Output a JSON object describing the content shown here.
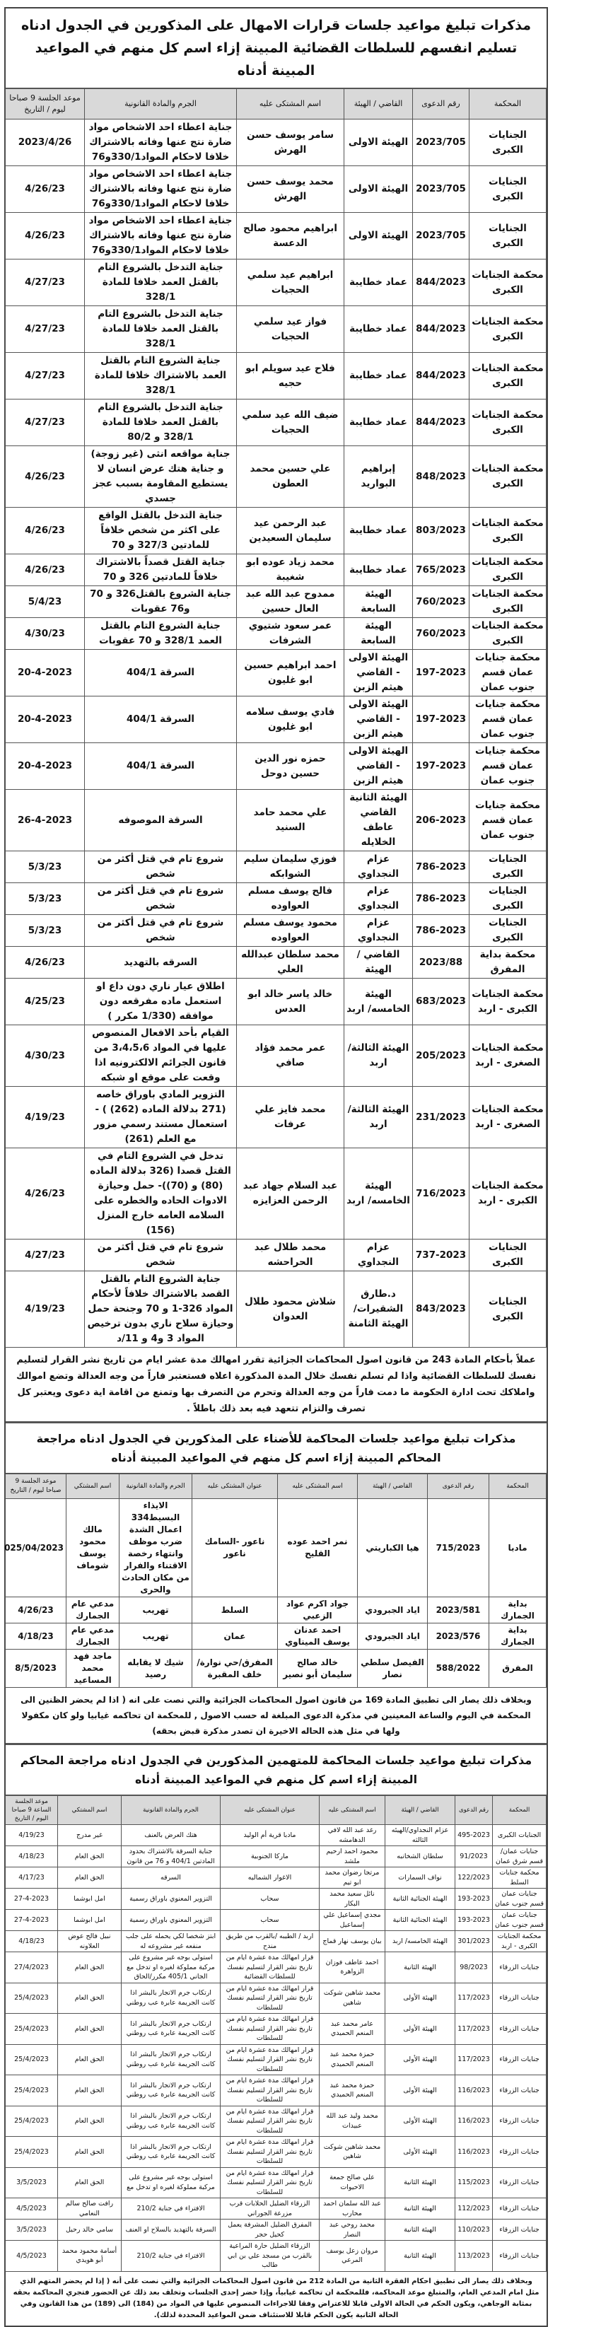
{
  "section1": {
    "title": "مذكرات تبليغ مواعيد جلسات قرارات الامهال على المذكورين في الجدول ادناه تسليم انفسهم للسلطات القضائية المبينة إزاء اسم كل منهم في المواعيد المبينة أدناه",
    "headers": [
      "المحكمة",
      "رقم الدعوى",
      "القاضي / الهيئة",
      "اسم المشتكى عليه",
      "الجرم والمادة القانونية",
      "موعد الجلسة 9 صباحا ليوم / التاريخ"
    ],
    "rows": [
      [
        "الجنايات الكبرى",
        "2023/705",
        "الهيئة الاولى",
        "سامر يوسف حسن الهرش",
        "جناية اعطاء احد الاشخاص مواد ضارة نتج عنها وفاته بالاشتراك خلافا لاحكام المواد330/1و76",
        "2023/4/26"
      ],
      [
        "الجنايات الكبرى",
        "2023/705",
        "الهيئة الاولى",
        "محمد يوسف حسن الهرش",
        "جناية اعطاء احد الاشخاص مواد ضارة نتج عنها وفاته بالاشتراك خلافا لاحكام المواد330/1و76",
        "4/26/23"
      ],
      [
        "الجنايات الكبرى",
        "2023/705",
        "الهيئة الاولى",
        "ابراهيم محمود صالح الدعسة",
        "جناية اعطاء احد الاشخاص مواد ضارة نتج عنها وفاته بالاشتراك خلافا لاحكام المواد330/1و76",
        "4/26/23"
      ],
      [
        "محكمة الجنايات الكبرى",
        "844/2023",
        "عماد خطايبة",
        "ابراهيم عيد سلمي الحجيات",
        "جناية التدخل بالشروع التام بالقتل العمد خلافا للمادة 328/1",
        "4/27/23"
      ],
      [
        "محكمة الجنايات الكبرى",
        "844/2023",
        "عماد خطايبة",
        "فواز عيد سلمي الحجيات",
        "جناية التدخل بالشروع التام بالقتل العمد خلافا للمادة 328/1",
        "4/27/23"
      ],
      [
        "محكمة الجنايات الكبرى",
        "844/2023",
        "عماد خطايبة",
        "فلاح عيد سويلم ابو حجيه",
        "جناية الشروع التام بالقتل العمد بالاشتراك خلافا للمادة 328/1",
        "4/27/23"
      ],
      [
        "محكمة الجنايات الكبرى",
        "844/2023",
        "عماد خطايبة",
        "ضيف الله عيد سلمي الحجيات",
        "جناية التدخل بالشروع التام بالقتل العمد خلافا للمادة 328/1 و 80/2",
        "4/27/23"
      ],
      [
        "محكمة الجنايات الكبرى",
        "848/2023",
        "إبراهيم البواريد",
        "علي حسين محمد العطون",
        "جناية مواقعه انثى (غير زوجة) و جناية هتك عرض انسان لا يستطيع المقاومة بسبب عجز جسدي",
        "4/26/23"
      ],
      [
        "محكمة الجنايات الكبرى",
        "803/2023",
        "عماد خطايبة",
        "عبد الرحمن عيد سليمان السعيدين",
        "جناية التدخل بالقتل الواقع على اكثر من شخص خلافاً للمادتين 327/3 و 70",
        "4/26/23"
      ],
      [
        "محكمة الجنايات الكبرى",
        "765/2023",
        "عماد خطايبة",
        "محمد زياد عوده ابو شغيبة",
        "جناية القتل قصداً بالاشتراك خلافاً للمادتين 326 و 70",
        "4/26/23"
      ],
      [
        "محكمة الجنايات الكبرى",
        "760/2023",
        "الهيئة السابعة",
        "ممدوح عبد الله عبد العال حسين",
        "جناية الشروع بالقتل326 و 70 و76 عقوبات",
        "5/4/23"
      ],
      [
        "محكمة الجنايات الكبرى",
        "760/2023",
        "الهيئة السابعة",
        "عمر سعود شتيوي الشرفات",
        "جناية الشروع التام بالقتل العمد 328/1 و 70 عقوبات",
        "4/30/23"
      ],
      [
        "محكمة جنايات عمان قسم جنوب عمان",
        "197-2023",
        "الهيئة الاولى - القاضي هيثم الزبن",
        "احمد ابراهيم حسين ابو غليون",
        "السرقة 404/1",
        "20-4-2023"
      ],
      [
        "محكمة جنايات عمان قسم جنوب عمان",
        "197-2023",
        "الهيئة الاولى - القاضي هيثم الزبن",
        "فادي يوسف سلامه ابو غليون",
        "السرقة 404/1",
        "20-4-2023"
      ],
      [
        "محكمة جنايات عمان قسم جنوب عمان",
        "197-2023",
        "الهيئة الاولى - القاضي هيثم الزبن",
        "حمزه نور الدين حسين دوحل",
        "السرقة 404/1",
        "20-4-2023"
      ],
      [
        "محكمة جنايات عمان قسم جنوب عمان",
        "206-2023",
        "الهيئة الثانية القاضي عاطف الخلايله",
        "علي محمد حامد السنيد",
        "السرقة الموصوفه",
        "26-4-2023"
      ],
      [
        "الجنايات الكبرى",
        "786-2023",
        "عزام النجداوي",
        "فوزي سليمان سليم الشوابكه",
        "شروع تام في قتل أكثر من شخص",
        "5/3/23"
      ],
      [
        "الجنايات الكبرى",
        "786-2023",
        "عزام النجداوي",
        "فالح يوسف مسلم العواوده",
        "شروع تام في قتل أكثر من شخص",
        "5/3/23"
      ],
      [
        "الجنايات الكبرى",
        "786-2023",
        "عزام النجداوي",
        "محمود يوسف مسلم العواوده",
        "شروع تام في قتل أكثر من شخص",
        "5/3/23"
      ],
      [
        "محكمة بداية المفرق",
        "2023/88",
        "القاضي / الهيئة",
        "محمد سلطان عبدالله العلي",
        "السرقه بالتهديد",
        "4/26/23"
      ],
      [
        "محكمة الجنايات الكبرى - اربد",
        "683/2023",
        "الهيئة الخامسه/ اربد",
        "خالد ياسر خالد ابو العدس",
        "اطلاق عيار ناري دون داع او استعمل ماده مفرقعه دون موافقه (1/330 مكرر )",
        "4/25/23"
      ],
      [
        "محكمة الجنايات الصغرى - اربد",
        "205/2023",
        "الهيئة الثالثة/ اربد",
        "عمر محمد فؤاد صافي",
        "القيام بأحد الافعال المنصوص عليها في المواد 3،4،5،6 من قانون الجرائم الالكترونيه اذا وقعت على موقع او شبكه",
        "4/30/23"
      ],
      [
        "محكمة الجنايات الصغرى - اربد",
        "231/2023",
        "الهيئة الثالثة/ اربد",
        "محمد فايز علي عرفات",
        "التزوير المادي باوراق خاصه (271 بدلالة الماده (262) ) - استعمال مستند رسمي مزور مع العلم (261)",
        "4/19/23"
      ],
      [
        "محكمة الجنايات الكبرى - اربد",
        "716/2023",
        "الهيئة الخامسه/ اربد",
        "عبد السلام جهاد عبد الرحمن العزايزه",
        "تدخل في الشروع التام في القتل قصدا (326 بدلالة الماده (80) و (70))- حمل وحيازة الادوات الحاده والخطره على السلامه العامه خارج المنزل (156)",
        "4/26/23"
      ],
      [
        "الجنايات الكبرى",
        "737-2023",
        "عزام النجداوي",
        "محمد طلال عبد الحراحشه",
        "شروع تام في قتل أكثر من شخص",
        "4/27/23"
      ],
      [
        "الجنايات الكبرى",
        "843/2023",
        "د.طارق الشقيرات/الهيئة الثامنة",
        "شلاش محمود طلال العدوان",
        "جناية الشروع التام بالقتل القصد بالاشتراك خلافاً لأحكام المواد 326-1 و 70 وجنحة حمل وحيازة سلاح ناري بدون ترخيص المواد 3 و4 و 11/د",
        "4/19/23"
      ]
    ],
    "note": "عملاً بأحكام المادة 243 من قانون اصول المحاكمات الجزائية تقرر امهالك مدة عشر ايام من تاريخ نشر القرار لتسليم نفسك للسلطات القضائية واذا لم تسلم نفسك خلال المدة المذكورة اعلاه فستعتبر فاراً من وجه العدالة وتضع اموالك واملاكك تحت ادارة الحكومة ما دمت فاراً من وجه العدالة وتحرم من التصرف بها وتمنع من اقامة اية دعوى ويعتبر كل تصرف والتزام تتعهد فيه بعد ذلك باطلاً ."
  },
  "section2": {
    "title": "مذكرات تبليغ مواعيد جلسات المحاكمة للأضناء على المذكورين في الجدول ادناه مراجعة المحاكم المبينة إزاء اسم كل منهم في المواعيد المبينة أدناه",
    "headers": [
      "المحكمة",
      "رقم الدعوى",
      "القاضي / الهيئة",
      "اسم المشتكى عليه",
      "عنوان المشتكى عليه",
      "الجرم والمادة القانونية",
      "اسم المشتكي",
      "موعد الجلسة 9 صباحا ليوم / التاريخ"
    ],
    "rows": [
      [
        "مادبا",
        "715/2023",
        "هيا الكباريتي",
        "نمر احمد عوده القليح",
        "ناعور -السامك ناعور",
        "الايذاء البسيط334 اعمال الشدة ضرب موظف وانتهاء رخصة الاقتناء والفرار من مكان الحادث والحرى",
        "مالك محمود يوسف شوماف",
        "025/04/2023"
      ],
      [
        "بداية الجمارك",
        "2023/581",
        "اياد الجبرودي",
        "جواد اكرم عواد الزعبي",
        "السلط",
        "تهريب",
        "مدعي عام الجمارك",
        "4/26/23"
      ],
      [
        "بداية الجمارك",
        "2023/576",
        "اياد الجبرودي",
        "احمد عدنان يوسف الميناوي",
        "عمان",
        "تهريب",
        "مدعي عام الجمارك",
        "4/18/23"
      ],
      [
        "المفرق",
        "588/2022",
        "الفيصل سلطي نصار",
        "خالد صالح سليمان أبو نصير",
        "المفرق/حي نوارة/خلف المقبرة",
        "شيك لا يقابله رصيد",
        "ماجد فهد محمد المساعيد",
        "8/5/2023"
      ]
    ],
    "note": "وبخلاف ذلك يصار الى تطبيق المادة 169 من قانون اصول المحاكمات الجزائية والتي نصت على انه ( اذا لم يحضر الظنين الى المحكمة في اليوم والساعة المعينين في مذكرة الدعوى المبلغة له حسب الاصول , للمحكمة ان تحاكمه غيابيا ولو كان مكفولا ولها في مثل هذه الحاله الاخيرة ان تصدر مذكرة قبض بحقه)"
  },
  "section3": {
    "title": "مذكرات تبليغ مواعيد جلسات المحاكمة للمتهمين المذكورين في الجدول ادناه مراجعة المحاكم المبينة إزاء اسم كل منهم في المواعيد المبينة أدناه",
    "headers": [
      "المحكمة",
      "رقم الدعوى",
      "القاضي / الهيئة",
      "اسم المشتكى عليه",
      "عنوان المشتكى عليه",
      "الجرم والمادة القانونية",
      "اسم المشتكي",
      "موعد الجلسة الساعة 9 صباحا اليوم / التاريخ"
    ],
    "rows": [
      [
        "الجنايات الكبرى",
        "495-2023",
        "عزام النجداوي/الهيئه الثالثه",
        "رغد عبد الله لافي الدهامشه",
        "مادبا قرية أم الوليد",
        "هتك العرض بالعنف",
        "غير مدرج",
        "4/19/23"
      ],
      [
        "جنايات عمان/ قسم شرق عمان",
        "91/2023",
        "سلطان الشخانبه",
        "محمود احمد ارحيم ملشد",
        "ماركا الجنوبية",
        "جناية السرقة بالاشتراك بحدود المادتين 404/1 و 76 من قانون",
        "الحق العام",
        "4/18/23"
      ],
      [
        "محكمة جنايات السلط",
        "122/2023",
        "نواف السمارات",
        "مرتجا رضوان محمد ابو تيم",
        "الاغوار الشماليه",
        "السرقه",
        "الحق العام",
        "4/17/23"
      ],
      [
        "جنايات عمان قسم جنوب عمان",
        "193-2023",
        "الهيئة الجنائية الثانية",
        "نائل سعيد محمد البكار",
        "سحاب",
        "التزوير المعنوي باوراق رسمية",
        "امل ابوشما",
        "27-4-2023"
      ],
      [
        "جنايات عمان قسم جنوب عمان",
        "193-2023",
        "الهيئة الجنائية الثانية",
        "مجدي إسماعيل علي إسماعيل",
        "سحاب",
        "التزوير المعنوي باوراق رسمية",
        "امل ابوشما",
        "27-4-2023"
      ],
      [
        "محكمة الجنايات الكبرى - اربد",
        "301/2023",
        "الهيئة الخامسه/ اربد",
        "بيان يوسف نهار قماج",
        "اربد / الطيبه /بالقرب من طريق مندح",
        "ابتز شخصا لكي يحمله على جلب منفعه غير مشروعه له",
        "نبيل فالح عوض العلاونه",
        "4/18/23"
      ],
      [
        "جنايات الزرقاء",
        "98/2023",
        "الهيئة الثانية",
        "احمد عاطف فوزان الزواهرة",
        "قرار امهالك مدة عشرة ايام من تاريخ نشر القرار لتسليم نفسك للسلطات القضائية",
        "استولى بوجه غير مشروع على مركبة مملوكة لغيره او تدخل مع الجاني 405/1 مكرر/الحاق",
        "الحق العام",
        "27/4/2023"
      ],
      [
        "جنايات الزرقاء",
        "117/2023",
        "الهيئة الأولى",
        "محمد شاهين شوكت شاهين",
        "قرار امهالك مدة عشرة ايام من تاريخ نشر القرار لتسليم نفسك للسلطات",
        "ارتكاب جرم الاتجار بالبشر اذا كانت الجريمة عابرة عب روطني",
        "الحق العام",
        "25/4/2023"
      ],
      [
        "جنايات الزرقاء",
        "117/2023",
        "الهيئة الأولى",
        "عامر محمد عبد المنعم الحميدي",
        "قرار امهالك مدة عشرة ايام من تاريخ نشر القرار لتسليم نفسك للسلطات",
        "ارتكاب جرم الاتجار بالبشر اذا كانت الجريمة عابرة عب روطني",
        "الحق العام",
        "25/4/2023"
      ],
      [
        "جنايات الزرقاء",
        "117/2023",
        "الهيئة الأولى",
        "حمزة محمد عبد المنعم الحميدي",
        "قرار امهالك مدة عشرة ايام من تاريخ نشر القرار لتسليم نفسك للسلطات",
        "ارتكاب جرم الاتجار بالبشر اذا كانت الجريمة عابرة عب روطني",
        "الحق العام",
        "25/4/2023"
      ],
      [
        "جنايات الزرقاء",
        "116/2023",
        "الهيئة الأولى",
        "حمزة محمد عبد المنعم الحميدي",
        "قرار امهالك مدة عشرة ايام من تاريخ نشر القرار لتسليم نفسك للسلطات",
        "ارتكاب جرم الاتجار بالبشر اذا كانت الجريمة عابرة عب روطني",
        "الحق العام",
        "25/4/2023"
      ],
      [
        "جنايات الزرقاء",
        "116/2023",
        "الهيئة الأولى",
        "محمد وليد عبد الله عبيدات",
        "قرار امهالك مدة عشرة ايام من تاريخ نشر القرار لتسليم نفسك للسلطات",
        "ارتكاب جرم الاتجار بالبشر اذا كانت الجريمة عابرة عب روطني",
        "الحق العام",
        "25/4/2023"
      ],
      [
        "جنايات الزرقاء",
        "116/2023",
        "الهيئة الأولى",
        "محمد شاهين شوكت شاهين",
        "قرار امهالك مدة عشرة ايام من تاريخ نشر القرار لتسليم نفسك للسلطات",
        "ارتكاب جرم الاتجار بالبشر اذا كانت الجريمة عابرة عب روطني",
        "الحق العام",
        "25/4/2023"
      ],
      [
        "جنايات الزرقاء",
        "115/2023",
        "الهيئة الثانية",
        "علي صالح جمعة الاحيوات",
        "قرار امهالك مدة عشرة ايام من تاريخ نشر القرار لتسليم نفسك للسلطات",
        "استولى بوجه غير مشروع على مركبة مملوكة لغيره او تدخل مع",
        "الحق العام",
        "3/5/2023"
      ],
      [
        "جنايات الزرقاء",
        "112/2023",
        "الهيئة الثانية",
        "عبد الله سلمان احمد محارب",
        "الزرقاء الضليل الحلابات قرب مزرعة الجوراني",
        "الافتراء في جناية 210/2",
        "رافت صالح سالم النعامي",
        "4/5/2023"
      ],
      [
        "جنايات الزرقاء",
        "110/2023",
        "الهيئة الثانية",
        "محمد روحي عبد النصار",
        "المفرق الضليل المشرفة يعمل كحيل حجر",
        "السرقة بالتهديد بالسلاح او العنف",
        "سامي خالد رحيل",
        "3/5/2023"
      ],
      [
        "جنايات الزرقاء",
        "113/2023",
        "الهيئة الثانية",
        "مروان زعل يوسف المرعي",
        "الزرقاء الضليل حارة المراعية بالقرب من مسجد علي بن ابي طالب",
        "الافتراء في جناية 210/2",
        "أسامة محمود محمد أبو هويدي",
        "4/5/2023"
      ]
    ],
    "note": "وبخلاف ذلك يصار الى تطبيق احكام الفقرة الثانية من المادة 212 من قانون اصول المحاكمات الجزائية والتي نصت على أنه ( إذا لم يحضر المتهم الذي مثل امام المدعي العام، والمتبلغ موعد المحاكمة، فللمحكمة ان تحاكمه غيابياً، وإذا حضر إحدى الجلسات وتخلف بعد ذلك عن الحضور فتجري المحاكمة بحقه بمثابة الوجاهي، ويكون الحكم في الحالة الاولى قابلا للاعتراض وفقا للاجراءات المنصوص عليها في المواد من (184) الى (189) من هذا القانون وفي الحالة الثانية يكون الحكم قابلا للاستئناف ضمن المواعيد المحددة لذلك)."
  }
}
